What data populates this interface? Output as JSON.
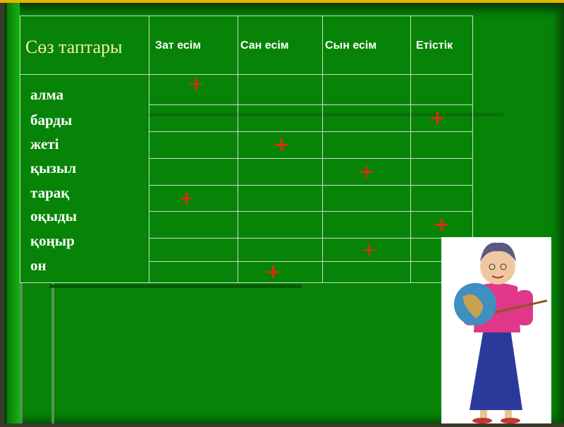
{
  "table": {
    "header": "Сөз таптары",
    "columns": [
      "Зат есім",
      "Сан есім",
      "Сын есім",
      "Етістік"
    ],
    "rows": [
      {
        "word": "алма",
        "mark_column": 0
      },
      {
        "word": "барды",
        "mark_column": 3
      },
      {
        "word": "жеті",
        "mark_column": 1
      },
      {
        "word": "қызыл",
        "mark_column": 2
      },
      {
        "word": "тарақ",
        "mark_column": 0
      },
      {
        "word": "оқыды",
        "mark_column": 3
      },
      {
        "word": "қоңыр",
        "mark_column": 2
      },
      {
        "word": "он",
        "mark_column": 1
      }
    ],
    "mark_symbol": "plus",
    "mark_color": "#e02a10"
  },
  "colors": {
    "background": "#078407",
    "header_text": "#f2f0a0",
    "top_bar": "#e8b400"
  },
  "illustration": "teacher-with-globe"
}
